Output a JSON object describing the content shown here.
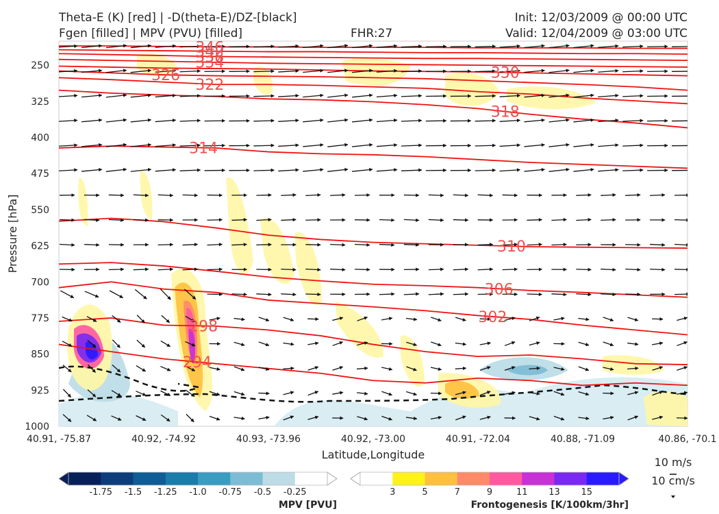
{
  "header": {
    "title_left_1": "Theta-E (K) [red] | -D(theta-E)/DZ-[black]",
    "title_left_2": "Fgen [filled] | MPV (PVU) [filled]",
    "title_center": "FHR:27",
    "title_right_1": "Init: 12/03/2009 @ 00:00 UTC",
    "title_right_2": "Valid: 12/04/2009 @ 03:00 UTC"
  },
  "chart_data": {
    "type": "cross-section",
    "xlabel": "Latitude,Longitude",
    "ylabel": "Pressure [hPa]",
    "x_ticks": [
      "40.91, -75.87",
      "40.92, -74.92",
      "40.93, -73.96",
      "40.92, -73.00",
      "40.91, -72.04",
      "40.88, -71.09",
      "40.86, -70.1"
    ],
    "y_ticks": [
      250,
      325,
      400,
      475,
      550,
      625,
      700,
      775,
      850,
      925,
      1000
    ],
    "ylim": [
      1000,
      200
    ],
    "y_inverted": true,
    "theta_e_contours": [
      {
        "label": "294",
        "p": [
          830,
          845,
          860,
          870,
          880,
          890,
          905,
          910,
          900,
          905,
          915,
          910,
          915
        ]
      },
      {
        "label": "298",
        "p": [
          782,
          775,
          790,
          792,
          800,
          812,
          830,
          845,
          855,
          852,
          860,
          870,
          872
        ]
      },
      {
        "label": "302",
        "p": [
          712,
          700,
          715,
          722,
          738,
          745,
          752,
          760,
          770,
          778,
          790,
          800,
          810
        ]
      },
      {
        "label": "306",
        "p": [
          663,
          660,
          667,
          678,
          690,
          698,
          705,
          708,
          712,
          718,
          722,
          727,
          732
        ]
      },
      {
        "label": "310",
        "p": [
          574,
          568,
          575,
          588,
          603,
          612,
          618,
          621,
          624,
          627,
          628,
          629,
          630
        ]
      },
      {
        "label": "314",
        "p": [
          422,
          418,
          420,
          422,
          430,
          434,
          436,
          440,
          446,
          452,
          456,
          460,
          464
        ]
      },
      {
        "label": "318",
        "p": [
          302,
          308,
          312,
          315,
          320,
          322,
          326,
          332,
          340,
          352,
          362,
          370,
          380
        ]
      },
      {
        "label": "322",
        "p": [
          276,
          280,
          285,
          290,
          290,
          292,
          295,
          298,
          305,
          310,
          318,
          324,
          330
        ]
      },
      {
        "label": "326",
        "p": [
          262,
          266,
          270,
          272,
          273,
          274,
          276,
          278,
          282,
          286,
          290,
          295,
          302
        ]
      },
      {
        "label": "330",
        "p": [
          252,
          254,
          256,
          257,
          258,
          260,
          262,
          263,
          264,
          266,
          268,
          270,
          272
        ]
      },
      {
        "label": "334",
        "p": [
          238,
          240,
          242,
          244,
          246,
          247,
          248,
          249,
          250,
          251,
          252,
          253,
          254
        ]
      },
      {
        "label": "338",
        "p": [
          226,
          228,
          230,
          232,
          233,
          234,
          235,
          236,
          236,
          237,
          238,
          239,
          240
        ]
      },
      {
        "label": "342",
        "p": [
          218,
          219,
          220,
          221,
          222,
          222,
          223,
          224,
          224,
          225,
          226,
          226,
          227
        ]
      },
      {
        "label": "346",
        "p": [
          210,
          210,
          211,
          212,
          212,
          213,
          213,
          213,
          214,
          214,
          214,
          215,
          215
        ]
      }
    ],
    "theta_e_labels": [
      "294",
      "298",
      "302",
      "306",
      "310",
      "314",
      "318",
      "322",
      "326",
      "330",
      "334",
      "338",
      "342",
      "346"
    ],
    "mpv_colorbar": {
      "label": "MPV [PVU]",
      "ticks": [
        "-1.75",
        "-1.5",
        "-1.25",
        "-1.0",
        "-0.75",
        "-0.5",
        "-0.25"
      ],
      "colors": [
        "#08205a",
        "#0d3d7a",
        "#105c94",
        "#1a7ca8",
        "#3a9cc0",
        "#7dbcd4",
        "#bcdce6",
        "#ffffff"
      ]
    },
    "fgen_colorbar": {
      "label": "Frontogenesis [K/100km/3hr]",
      "ticks": [
        "3",
        "5",
        "7",
        "9",
        "11",
        "13",
        "15"
      ],
      "colors": [
        "#ffffff",
        "#fff21a",
        "#ffc040",
        "#ff8a6a",
        "#ff5aa0",
        "#c830d8",
        "#7a2af0",
        "#2a1aff"
      ]
    },
    "wind_key": {
      "label_1": "10 m/s",
      "label_2": "10 cm/s"
    }
  }
}
